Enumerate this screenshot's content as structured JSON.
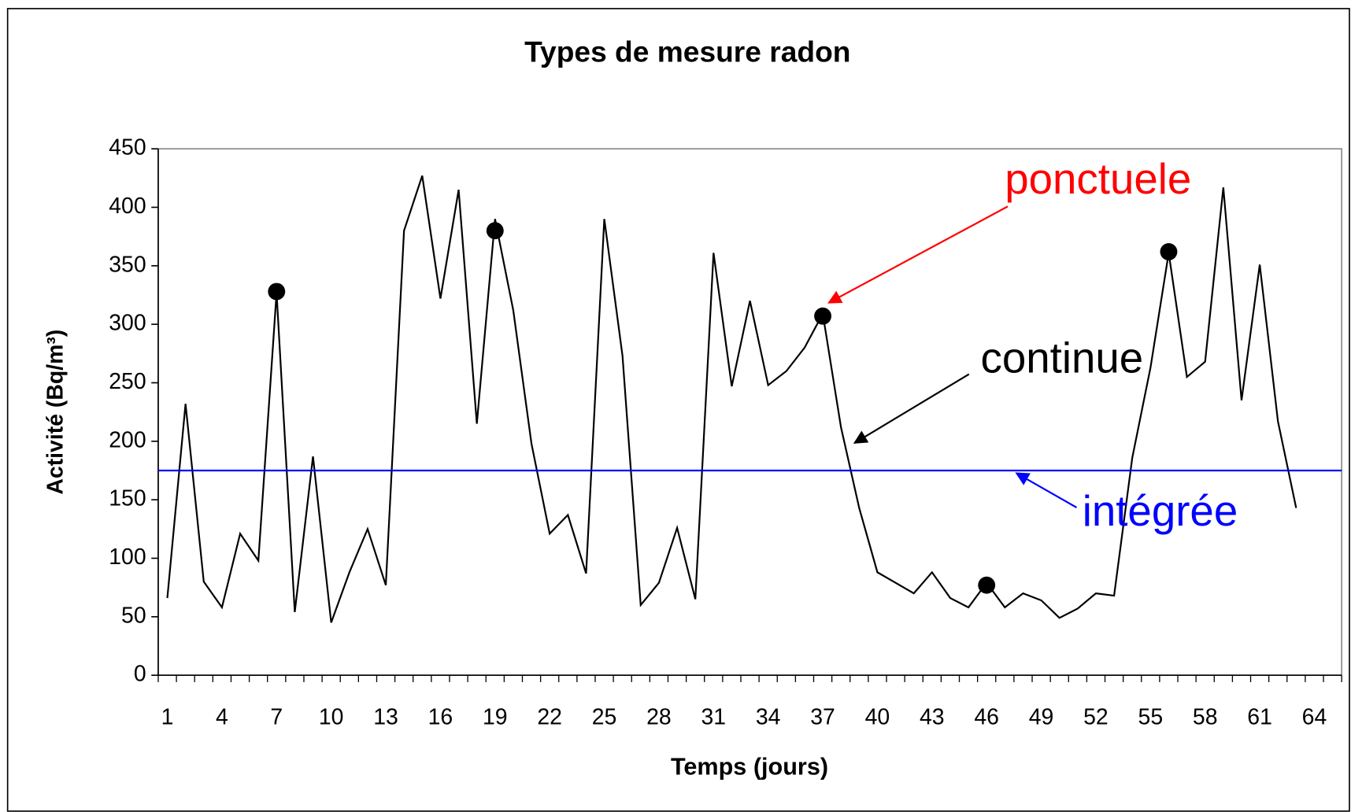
{
  "chart_data": {
    "type": "line",
    "title": "Types de mesure radon",
    "x_label": "Temps (jours)",
    "y_label": "Activité (Bq/m³)",
    "categories": [
      "1",
      null,
      null,
      "4",
      null,
      null,
      "7",
      null,
      null,
      "10",
      null,
      null,
      "13",
      null,
      null,
      "16",
      null,
      null,
      "19",
      null,
      null,
      "22",
      null,
      null,
      "25",
      null,
      null,
      "28",
      null,
      null,
      "31",
      null,
      null,
      "34",
      null,
      null,
      "37",
      null,
      null,
      "40",
      null,
      null,
      "43",
      null,
      null,
      "46",
      null,
      null,
      "49",
      null,
      null,
      "52",
      null,
      null,
      "55",
      null,
      null,
      "58",
      null,
      null,
      "61",
      null,
      null,
      "64",
      null
    ],
    "ylim": [
      0,
      450
    ],
    "yticks": [
      0,
      50,
      100,
      150,
      200,
      250,
      300,
      350,
      400,
      450
    ],
    "series": [
      {
        "name": "continue",
        "color": "#000000",
        "style": "line",
        "values": [
          66,
          232,
          80,
          58,
          121,
          98,
          327,
          54,
          187,
          45,
          88,
          125,
          77,
          380,
          427,
          322,
          415,
          215,
          390,
          312,
          198,
          121,
          137,
          87,
          390,
          273,
          60,
          79,
          126,
          65,
          361,
          247,
          320,
          248,
          260,
          280,
          309,
          212,
          143,
          88,
          79,
          70,
          88,
          66,
          58,
          79,
          58,
          70,
          64,
          49,
          57,
          70,
          68,
          186,
          263,
          361,
          255,
          268,
          417,
          235,
          351,
          217,
          143,
          null,
          null
        ]
      },
      {
        "name": "ponctuele",
        "color": "#ff0000",
        "style": "points",
        "values": [
          null,
          null,
          null,
          null,
          null,
          null,
          328,
          null,
          null,
          null,
          null,
          null,
          null,
          null,
          null,
          null,
          null,
          null,
          380,
          null,
          null,
          null,
          null,
          null,
          null,
          null,
          null,
          null,
          null,
          null,
          null,
          null,
          null,
          null,
          null,
          null,
          307,
          null,
          null,
          null,
          null,
          null,
          null,
          null,
          null,
          77,
          null,
          null,
          null,
          null,
          null,
          null,
          null,
          null,
          null,
          362,
          null,
          null,
          null,
          null,
          null,
          null,
          null,
          null,
          null
        ]
      },
      {
        "name": "intégrée",
        "color": "#0000ff",
        "style": "hline",
        "value": 175
      }
    ]
  }
}
